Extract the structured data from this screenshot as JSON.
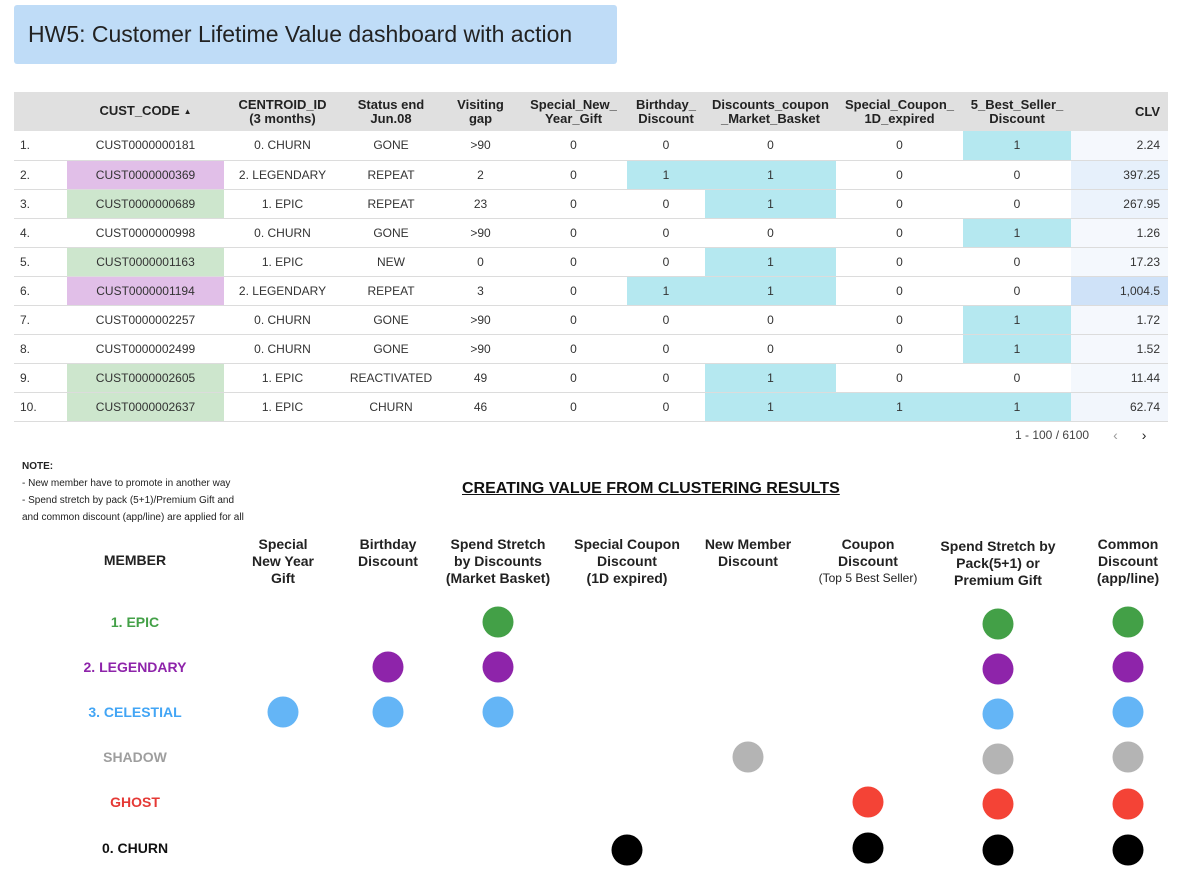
{
  "title": "HW5: Customer Lifetime Value dashboard with action",
  "table": {
    "columns": [
      {
        "label": ""
      },
      {
        "label": "CUST_CODE",
        "sort": "▲"
      },
      {
        "label": "CENTROID_ID\n(3 months)"
      },
      {
        "label": "Status end\nJun.08"
      },
      {
        "label": "Visiting\ngap"
      },
      {
        "label": "Special_New_\nYear_Gift"
      },
      {
        "label": "Birthday_\nDiscount"
      },
      {
        "label": "Discounts_coupon\n_Market_Basket"
      },
      {
        "label": "Special_Coupon_\n1D_expired"
      },
      {
        "label": "5_Best_Seller_\nDiscount"
      },
      {
        "label": "CLV"
      }
    ],
    "rows": [
      {
        "num": "1.",
        "code": "CUST0000000181",
        "centroid": "0. CHURN",
        "status": "GONE",
        "gap": ">90",
        "ny": "0",
        "bd": "0",
        "mb": "0",
        "sc": "0",
        "bs": "1",
        "clv": "2.24",
        "code_bg": "#ffffff",
        "clv_bg": "#f5f8fd"
      },
      {
        "num": "2.",
        "code": "CUST0000000369",
        "centroid": "2. LEGENDARY",
        "status": "REPEAT",
        "gap": "2",
        "ny": "0",
        "bd": "1",
        "mb": "1",
        "sc": "0",
        "bs": "0",
        "clv": "397.25",
        "code_bg": "#e1bfe8",
        "clv_bg": "#e6f0fb"
      },
      {
        "num": "3.",
        "code": "CUST0000000689",
        "centroid": "1. EPIC",
        "status": "REPEAT",
        "gap": "23",
        "ny": "0",
        "bd": "0",
        "mb": "1",
        "sc": "0",
        "bs": "0",
        "clv": "267.95",
        "code_bg": "#cde6cd",
        "clv_bg": "#ecf3fc"
      },
      {
        "num": "4.",
        "code": "CUST0000000998",
        "centroid": "0. CHURN",
        "status": "GONE",
        "gap": ">90",
        "ny": "0",
        "bd": "0",
        "mb": "0",
        "sc": "0",
        "bs": "1",
        "clv": "1.26",
        "code_bg": "#ffffff",
        "clv_bg": "#f5f8fd"
      },
      {
        "num": "5.",
        "code": "CUST0000001163",
        "centroid": "1. EPIC",
        "status": "NEW",
        "gap": "0",
        "ny": "0",
        "bd": "0",
        "mb": "1",
        "sc": "0",
        "bs": "0",
        "clv": "17.23",
        "code_bg": "#cde6cd",
        "clv_bg": "#f4f8fd"
      },
      {
        "num": "6.",
        "code": "CUST0000001194",
        "centroid": "2. LEGENDARY",
        "status": "REPEAT",
        "gap": "3",
        "ny": "0",
        "bd": "1",
        "mb": "1",
        "sc": "0",
        "bs": "0",
        "clv": "1,004.5",
        "code_bg": "#e1bfe8",
        "clv_bg": "#cfe2f8"
      },
      {
        "num": "7.",
        "code": "CUST0000002257",
        "centroid": "0. CHURN",
        "status": "GONE",
        "gap": ">90",
        "ny": "0",
        "bd": "0",
        "mb": "0",
        "sc": "0",
        "bs": "1",
        "clv": "1.72",
        "code_bg": "#ffffff",
        "clv_bg": "#f5f8fd"
      },
      {
        "num": "8.",
        "code": "CUST0000002499",
        "centroid": "0. CHURN",
        "status": "GONE",
        "gap": ">90",
        "ny": "0",
        "bd": "0",
        "mb": "0",
        "sc": "0",
        "bs": "1",
        "clv": "1.52",
        "code_bg": "#ffffff",
        "clv_bg": "#f5f8fd"
      },
      {
        "num": "9.",
        "code": "CUST0000002605",
        "centroid": "1. EPIC",
        "status": "REACTIVATED",
        "gap": "49",
        "ny": "0",
        "bd": "0",
        "mb": "1",
        "sc": "0",
        "bs": "0",
        "clv": "11.44",
        "code_bg": "#cde6cd",
        "clv_bg": "#f4f8fd"
      },
      {
        "num": "10.",
        "code": "CUST0000002637",
        "centroid": "1. EPIC",
        "status": "CHURN",
        "gap": "46",
        "ny": "0",
        "bd": "0",
        "mb": "1",
        "sc": "1",
        "bs": "1",
        "clv": "62.74",
        "code_bg": "#cde6cd",
        "clv_bg": "#f2f6fc"
      }
    ],
    "highlight_color": "#b5e8f0"
  },
  "pager": {
    "range": "1 - 100 / 6100",
    "prev": "‹",
    "next": "›"
  },
  "note": {
    "title": "NOTE:",
    "lines": [
      "- New member have to promote in another way",
      "- Spend stretch by pack (5+1)/Premium Gift and",
      "and common discount (app/line) are applied for all"
    ]
  },
  "section_title": "CREATING VALUE FROM CLUSTERING RESULTS",
  "matrix": {
    "member_header": "MEMBER",
    "columns": [
      {
        "key": "ny",
        "label": "Special\nNew Year\nGift"
      },
      {
        "key": "bd",
        "label": "Birthday\nDiscount"
      },
      {
        "key": "mb",
        "label": "Spend Stretch\nby Discounts\n(Market Basket)"
      },
      {
        "key": "sc",
        "label": "Special Coupon\nDiscount\n(1D expired)"
      },
      {
        "key": "nm",
        "label": "New Member\nDiscount"
      },
      {
        "key": "cd",
        "label": "Coupon\nDiscount",
        "sub": "(Top 5 Best Seller)"
      },
      {
        "key": "ss",
        "label": "Spend Stretch by\nPack(5+1) or\nPremium Gift"
      },
      {
        "key": "cm",
        "label": "Common\nDiscount\n(app/line)"
      }
    ],
    "members": [
      {
        "label": "1. EPIC",
        "color": "#43a047",
        "actions": [
          "mb",
          "ss",
          "cm"
        ]
      },
      {
        "label": "2. LEGENDARY",
        "color": "#8e24aa",
        "actions": [
          "bd",
          "mb",
          "ss",
          "cm"
        ]
      },
      {
        "label": "3. CELESTIAL",
        "color": "#64b5f6",
        "text_color": "#42a5f5",
        "actions": [
          "ny",
          "bd",
          "mb",
          "ss",
          "cm"
        ]
      },
      {
        "label": "SHADOW",
        "color": "#b4b4b4",
        "text_color": "#9e9e9e",
        "actions": [
          "nm",
          "ss",
          "cm"
        ]
      },
      {
        "label": "GHOST",
        "color": "#f44336",
        "text_color": "#e53935",
        "actions": [
          "cd",
          "ss",
          "cm"
        ]
      },
      {
        "label": "0. CHURN",
        "color": "#000000",
        "text_color": "#111111",
        "actions": [
          "sc",
          "cd",
          "ss",
          "cm"
        ]
      }
    ]
  }
}
